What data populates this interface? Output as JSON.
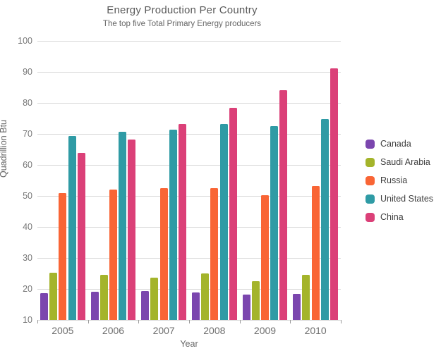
{
  "title": "Energy Production Per Country",
  "subtitle": "The top five Total Primary Energy producers",
  "chart_data": {
    "type": "bar",
    "title": "Energy Production Per Country",
    "subtitle": "The top five Total Primary Energy producers",
    "categories": [
      "2005",
      "2006",
      "2007",
      "2008",
      "2009",
      "2010"
    ],
    "series": [
      {
        "name": "Canada",
        "color": "#7B46AE",
        "values": [
          18.7,
          19.0,
          19.4,
          18.9,
          18.2,
          18.3
        ]
      },
      {
        "name": "Saudi Arabia",
        "color": "#A4B42B",
        "values": [
          25.2,
          24.5,
          23.6,
          24.9,
          22.6,
          24.5
        ]
      },
      {
        "name": "Russia",
        "color": "#F96535",
        "values": [
          51.0,
          52.0,
          52.5,
          52.6,
          50.3,
          53.2
        ]
      },
      {
        "name": "United States",
        "color": "#2F9BA5",
        "values": [
          69.4,
          70.6,
          71.4,
          73.2,
          72.6,
          74.8
        ]
      },
      {
        "name": "China",
        "color": "#DB4078",
        "values": [
          63.9,
          68.2,
          73.2,
          78.4,
          84.0,
          91.2
        ]
      }
    ],
    "xlabel": "Year",
    "ylabel": "Quadrillion Btu",
    "ylim": [
      10,
      100
    ],
    "yticks": [
      10,
      20,
      30,
      40,
      50,
      60,
      70,
      80,
      90,
      100
    ],
    "grid": true,
    "legend_position": "right"
  },
  "colors": {
    "background": "#FFFFFF",
    "gridline": "#D9D9D9",
    "axis_tick": "#9A9A9A",
    "axis_text": "#777777",
    "title_text": "#5A5A5A",
    "subtitle_text": "#666666",
    "legend_text": "#3F3F3F"
  }
}
